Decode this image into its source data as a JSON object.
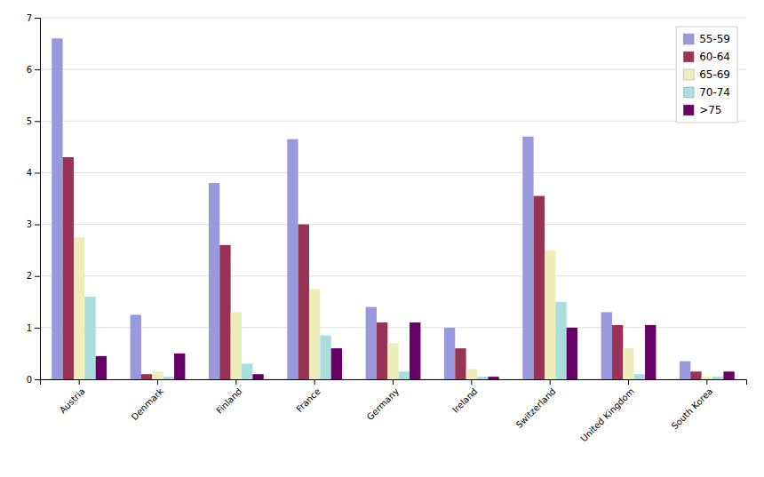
{
  "chart_data": {
    "type": "bar",
    "categories": [
      "Austria",
      "Denmark",
      "Finland",
      "France",
      "Germany",
      "Ireland",
      "Switzerland",
      "United Kingdom",
      "South Korea"
    ],
    "series": [
      {
        "name": "55-59",
        "color": "#9999DD",
        "values": [
          6.6,
          1.25,
          3.8,
          4.65,
          1.4,
          1.0,
          4.7,
          1.3,
          0.35
        ]
      },
      {
        "name": "60-64",
        "color": "#993355",
        "values": [
          4.3,
          0.1,
          2.6,
          3.0,
          1.1,
          0.6,
          3.55,
          1.05,
          0.15
        ]
      },
      {
        "name": "65-69",
        "color": "#EEEEBB",
        "values": [
          2.75,
          0.15,
          1.3,
          1.75,
          0.7,
          0.2,
          2.5,
          0.6,
          0.05
        ]
      },
      {
        "name": "70-74",
        "color": "#AADDDD",
        "values": [
          1.6,
          0.05,
          0.3,
          0.85,
          0.15,
          0.05,
          1.5,
          0.1,
          0.05
        ]
      },
      {
        "name": ">75",
        "color": "#660066",
        "values": [
          0.45,
          0.5,
          0.1,
          0.6,
          1.1,
          0.05,
          1.0,
          1.05,
          0.15
        ]
      }
    ],
    "ylim": [
      0,
      7
    ],
    "yticks": [
      0,
      1,
      2,
      3,
      4,
      5,
      6,
      7
    ],
    "grid": true,
    "legend": "upper right"
  }
}
